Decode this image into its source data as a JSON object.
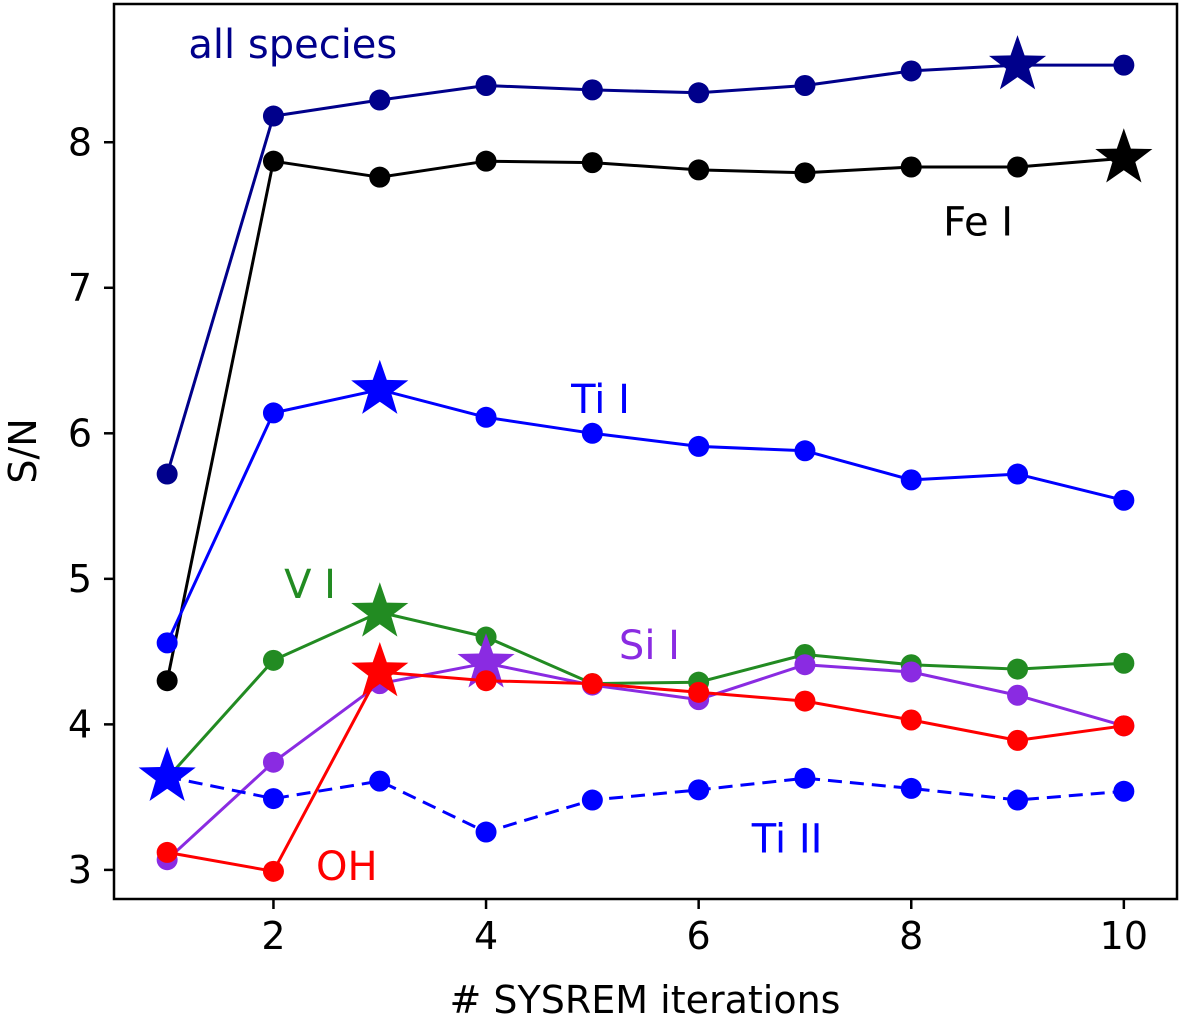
{
  "chart_data": {
    "type": "line",
    "title": "",
    "xlabel": "# SYSREM iterations",
    "ylabel": "S/N",
    "xlim": [
      0.5,
      10.5
    ],
    "ylim": [
      2.8,
      8.95
    ],
    "xticks": [
      2,
      4,
      6,
      8,
      10
    ],
    "yticks": [
      3,
      4,
      5,
      6,
      7,
      8
    ],
    "grid": false,
    "legend": "none (labels placed next to each series)",
    "x": [
      1,
      2,
      3,
      4,
      5,
      6,
      7,
      8,
      9,
      10
    ],
    "series": [
      {
        "name": "all species",
        "color": "#00008b",
        "linestyle": "solid",
        "values": [
          5.72,
          8.18,
          8.29,
          8.39,
          8.36,
          8.34,
          8.39,
          8.49,
          8.53,
          8.53
        ],
        "best_iteration": 9,
        "label_anchor": [
          1.2,
          8.58
        ]
      },
      {
        "name": "Fe I",
        "color": "#000000",
        "linestyle": "solid",
        "values": [
          4.3,
          7.87,
          7.76,
          7.87,
          7.86,
          7.81,
          7.79,
          7.83,
          7.83,
          7.89
        ],
        "best_iteration": 10,
        "label_anchor": [
          8.3,
          7.36
        ]
      },
      {
        "name": "Ti I",
        "color": "#0000ff",
        "linestyle": "solid",
        "values": [
          4.56,
          6.14,
          6.3,
          6.11,
          6.0,
          5.91,
          5.88,
          5.68,
          5.72,
          5.54
        ],
        "best_iteration": 3,
        "label_anchor": [
          4.8,
          6.14
        ]
      },
      {
        "name": "V I",
        "color": "#228b22",
        "linestyle": "solid",
        "values": [
          3.63,
          4.44,
          4.77,
          4.6,
          4.28,
          4.29,
          4.48,
          4.41,
          4.38,
          4.42
        ],
        "best_iteration": 3,
        "label_anchor": [
          2.1,
          4.87
        ]
      },
      {
        "name": "Si I",
        "color": "#8a2be2",
        "linestyle": "solid",
        "values": [
          3.07,
          3.74,
          4.28,
          4.42,
          4.27,
          4.17,
          4.41,
          4.36,
          4.2,
          3.99
        ],
        "best_iteration": 4,
        "label_anchor": [
          5.25,
          4.45
        ]
      },
      {
        "name": "OH",
        "color": "#ff0000",
        "linestyle": "solid",
        "values": [
          3.12,
          2.99,
          4.36,
          4.3,
          4.28,
          4.22,
          4.16,
          4.03,
          3.89,
          3.99
        ],
        "best_iteration": 3,
        "label_anchor": [
          2.4,
          2.93
        ]
      },
      {
        "name": "Ti II",
        "color": "#0000ff",
        "linestyle": "dashed",
        "values": [
          3.64,
          3.49,
          3.61,
          3.26,
          3.48,
          3.55,
          3.63,
          3.56,
          3.48,
          3.54
        ],
        "best_iteration": 1,
        "label_anchor": [
          6.5,
          3.12
        ]
      }
    ]
  }
}
